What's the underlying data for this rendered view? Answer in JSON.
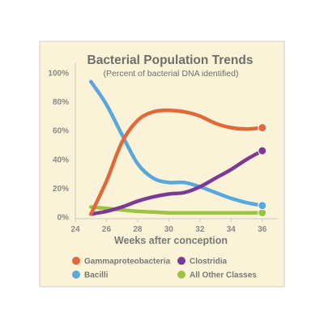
{
  "chart_data": {
    "type": "line",
    "title": "Bacterial Population Trends",
    "subtitle": "(Percent of bacterial DNA identified)",
    "xlabel": "Weeks after conception",
    "ylabel": "",
    "xlim": [
      24,
      37
    ],
    "ylim": [
      0,
      100
    ],
    "x_ticks": [
      "24",
      "26",
      "28",
      "30",
      "32",
      "34",
      "36"
    ],
    "y_ticks": [
      "0%",
      "20%",
      "40%",
      "60%",
      "80%",
      "100%"
    ],
    "grid": false,
    "legend_position": "bottom",
    "background_color": "#faf3d8",
    "frame_color": "#cfcfcf",
    "series": [
      {
        "name": "Gammaproteobacteria",
        "color": "#e0683a",
        "x": [
          25,
          26,
          27,
          28,
          29,
          30,
          31,
          32,
          33,
          34,
          35,
          36
        ],
        "y": [
          2,
          25,
          52,
          67,
          73,
          74,
          73,
          70,
          65,
          62,
          61,
          62
        ],
        "end_marker": true
      },
      {
        "name": "Clostridia",
        "color": "#7a3a96",
        "x": [
          25,
          26,
          27,
          28,
          29,
          30,
          31,
          32,
          33,
          34,
          35,
          36
        ],
        "y": [
          2,
          4,
          7,
          11,
          14,
          16,
          17,
          21,
          27,
          33,
          40,
          46
        ],
        "end_marker": true
      },
      {
        "name": "Bacilli",
        "color": "#5aa7dc",
        "x": [
          25,
          26,
          27,
          28,
          29,
          30,
          31,
          32,
          33,
          34,
          35,
          36
        ],
        "y": [
          94,
          78,
          57,
          37,
          27,
          24,
          24,
          21,
          17,
          13,
          10,
          8
        ],
        "end_marker": true
      },
      {
        "name": "All Other Classes",
        "color": "#9cc443",
        "x": [
          25,
          26,
          27,
          28,
          29,
          30,
          31,
          32,
          33,
          34,
          35,
          36
        ],
        "y": [
          7,
          6,
          5,
          4,
          3.5,
          3,
          3,
          3,
          3,
          3,
          3,
          3
        ],
        "end_marker": true
      }
    ],
    "legend": [
      {
        "label": "Gammaproteobacteria",
        "color": "#e0683a"
      },
      {
        "label": "Clostridia",
        "color": "#7a3a96"
      },
      {
        "label": "Bacilli",
        "color": "#5aa7dc"
      },
      {
        "label": "All Other Classes",
        "color": "#9cc443"
      }
    ]
  }
}
